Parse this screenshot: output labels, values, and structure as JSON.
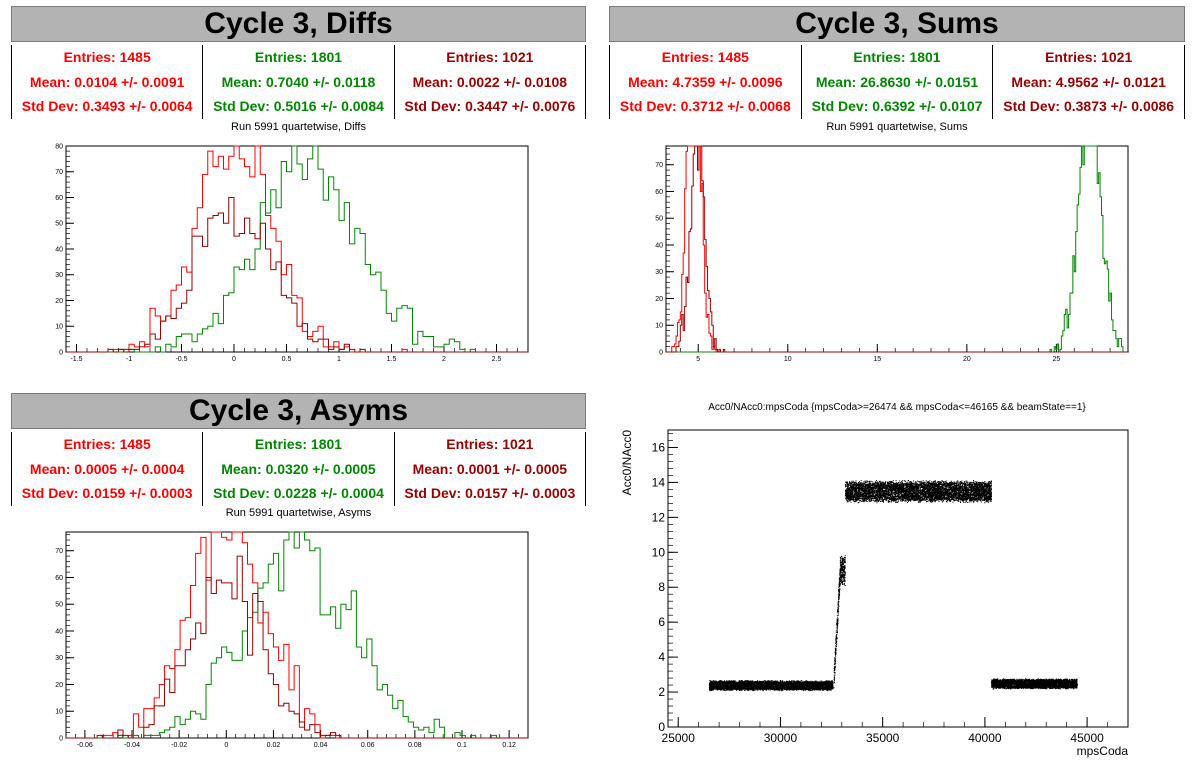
{
  "colors": {
    "red": "#ff0000",
    "green": "#008800",
    "darkred": "#990000"
  },
  "panels": {
    "diffs": {
      "title": "Cycle 3, Diffs",
      "subtitle": "Run 5991 quartetwise, Diffs",
      "stats": [
        {
          "entries": "Entries: 1485",
          "mean": "Mean: 0.0104 +/- 0.0091",
          "std": "Std Dev: 0.3493 +/- 0.0064",
          "color": "#ff0000"
        },
        {
          "entries": "Entries: 1801",
          "mean": "Mean: 0.7040 +/- 0.0118",
          "std": "Std Dev: 0.5016 +/- 0.0084",
          "color": "#008800"
        },
        {
          "entries": "Entries: 1021",
          "mean": "Mean: 0.0022 +/- 0.0108",
          "std": "Std Dev: 0.3447 +/- 0.0076",
          "color": "#990000"
        }
      ]
    },
    "sums": {
      "title": "Cycle 3, Sums",
      "subtitle": "Run 5991 quartetwise, Sums",
      "stats": [
        {
          "entries": "Entries: 1485",
          "mean": "Mean: 4.7359 +/- 0.0096",
          "std": "Std Dev: 0.3712 +/- 0.0068",
          "color": "#ff0000"
        },
        {
          "entries": "Entries: 1801",
          "mean": "Mean: 26.8630 +/- 0.0151",
          "std": "Std Dev: 0.6392 +/- 0.0107",
          "color": "#008800"
        },
        {
          "entries": "Entries: 1021",
          "mean": "Mean: 4.9562 +/- 0.0121",
          "std": "Std Dev: 0.3873 +/- 0.0086",
          "color": "#990000"
        }
      ]
    },
    "asyms": {
      "title": "Cycle 3, Asyms",
      "subtitle": "Run 5991 quartetwise, Asyms",
      "stats": [
        {
          "entries": "Entries: 1485",
          "mean": "Mean: 0.0005 +/- 0.0004",
          "std": "Std Dev: 0.0159 +/- 0.0003",
          "color": "#ff0000"
        },
        {
          "entries": "Entries: 1801",
          "mean": "Mean: 0.0320 +/- 0.0005",
          "std": "Std Dev: 0.0228 +/- 0.0004",
          "color": "#008800"
        },
        {
          "entries": "Entries: 1021",
          "mean": "Mean: 0.0001 +/- 0.0005",
          "std": "Std Dev: 0.0157 +/- 0.0003",
          "color": "#990000"
        }
      ]
    },
    "scatter": {
      "title": "Acc0/NAcc0:mpsCoda {mpsCoda>=26474 && mpsCoda<=46165 && beamState==1}"
    }
  },
  "chart_data": [
    {
      "type": "histogram",
      "id": "diffs",
      "xlim": [
        -1.6,
        2.8
      ],
      "ylim": [
        0,
        80
      ],
      "xticks": [
        "-1.5",
        "-1",
        "-0.5",
        "0",
        "0.5",
        "1",
        "1.5",
        "2",
        "2.5"
      ],
      "xtick_values": [
        -1.5,
        -1,
        -0.5,
        0,
        0.5,
        1,
        1.5,
        2,
        2.5
      ],
      "yticks": [
        "0",
        "10",
        "20",
        "30",
        "40",
        "50",
        "60",
        "70",
        "80"
      ],
      "ytick_values": [
        0,
        10,
        20,
        30,
        40,
        50,
        60,
        70,
        80
      ],
      "series": [
        {
          "color": "#ff0000",
          "mean": 0.0104,
          "std": 0.3493,
          "entries": 1485
        },
        {
          "color": "#008800",
          "mean": 0.704,
          "std": 0.5016,
          "entries": 1801
        },
        {
          "color": "#990000",
          "mean": 0.0022,
          "std": 0.3447,
          "entries": 1021
        }
      ],
      "bin_width": 0.05
    },
    {
      "type": "histogram",
      "id": "sums",
      "xlim": [
        3.2,
        29
      ],
      "ylim": [
        0,
        77
      ],
      "xticks": [
        "5",
        "10",
        "15",
        "20",
        "25"
      ],
      "xtick_values": [
        5,
        10,
        15,
        20,
        25
      ],
      "yticks": [
        "0",
        "10",
        "20",
        "30",
        "40",
        "50",
        "60",
        "70"
      ],
      "ytick_values": [
        0,
        10,
        20,
        30,
        40,
        50,
        60,
        70
      ],
      "series": [
        {
          "color": "#ff0000",
          "mean": 4.7359,
          "std": 0.3712,
          "entries": 1485
        },
        {
          "color": "#008800",
          "mean": 26.863,
          "std": 0.6392,
          "entries": 1801
        },
        {
          "color": "#990000",
          "mean": 4.9562,
          "std": 0.3873,
          "entries": 1021
        }
      ],
      "bin_width": 0.08
    },
    {
      "type": "histogram",
      "id": "asyms",
      "xlim": [
        -0.068,
        0.128
      ],
      "ylim": [
        0,
        77
      ],
      "xticks": [
        "-0.06",
        "-0.04",
        "-0.02",
        "0",
        "0.02",
        "0.04",
        "0.06",
        "0.08",
        "0.1",
        "0.12"
      ],
      "xtick_values": [
        -0.06,
        -0.04,
        -0.02,
        0,
        0.02,
        0.04,
        0.06,
        0.08,
        0.1,
        0.12
      ],
      "yticks": [
        "0",
        "10",
        "20",
        "30",
        "40",
        "50",
        "60",
        "70"
      ],
      "ytick_values": [
        0,
        10,
        20,
        30,
        40,
        50,
        60,
        70
      ],
      "series": [
        {
          "color": "#ff0000",
          "mean": 0.0005,
          "std": 0.0159,
          "entries": 1485
        },
        {
          "color": "#008800",
          "mean": 0.032,
          "std": 0.0228,
          "entries": 1801
        },
        {
          "color": "#990000",
          "mean": 0.0001,
          "std": 0.0157,
          "entries": 1021
        }
      ],
      "bin_width": 0.0022
    },
    {
      "type": "scatter",
      "id": "scatter",
      "xlabel": "mpsCoda",
      "ylabel": "Acc0/NAcc0",
      "xlim": [
        24500,
        47000
      ],
      "ylim": [
        0,
        17
      ],
      "xticks": [
        "25000",
        "30000",
        "35000",
        "40000",
        "45000"
      ],
      "xtick_values": [
        25000,
        30000,
        35000,
        40000,
        45000
      ],
      "yticks": [
        "0",
        "2",
        "4",
        "6",
        "8",
        "10",
        "12",
        "14",
        "16"
      ],
      "ytick_values": [
        0,
        2,
        4,
        6,
        8,
        10,
        12,
        14,
        16
      ],
      "segments": [
        {
          "x": [
            26500,
            32550
          ],
          "y": 2.4,
          "spread": 0.3
        },
        {
          "x": [
            32600,
            32900
          ],
          "y": 5.5,
          "spread": 2.5
        },
        {
          "x": [
            32900,
            33150
          ],
          "y": 9.0,
          "spread": 0.9
        },
        {
          "x": [
            33150,
            40300
          ],
          "y": 13.5,
          "spread": 0.65
        },
        {
          "x": [
            40300,
            44500
          ],
          "y": 2.5,
          "spread": 0.3
        }
      ]
    }
  ]
}
